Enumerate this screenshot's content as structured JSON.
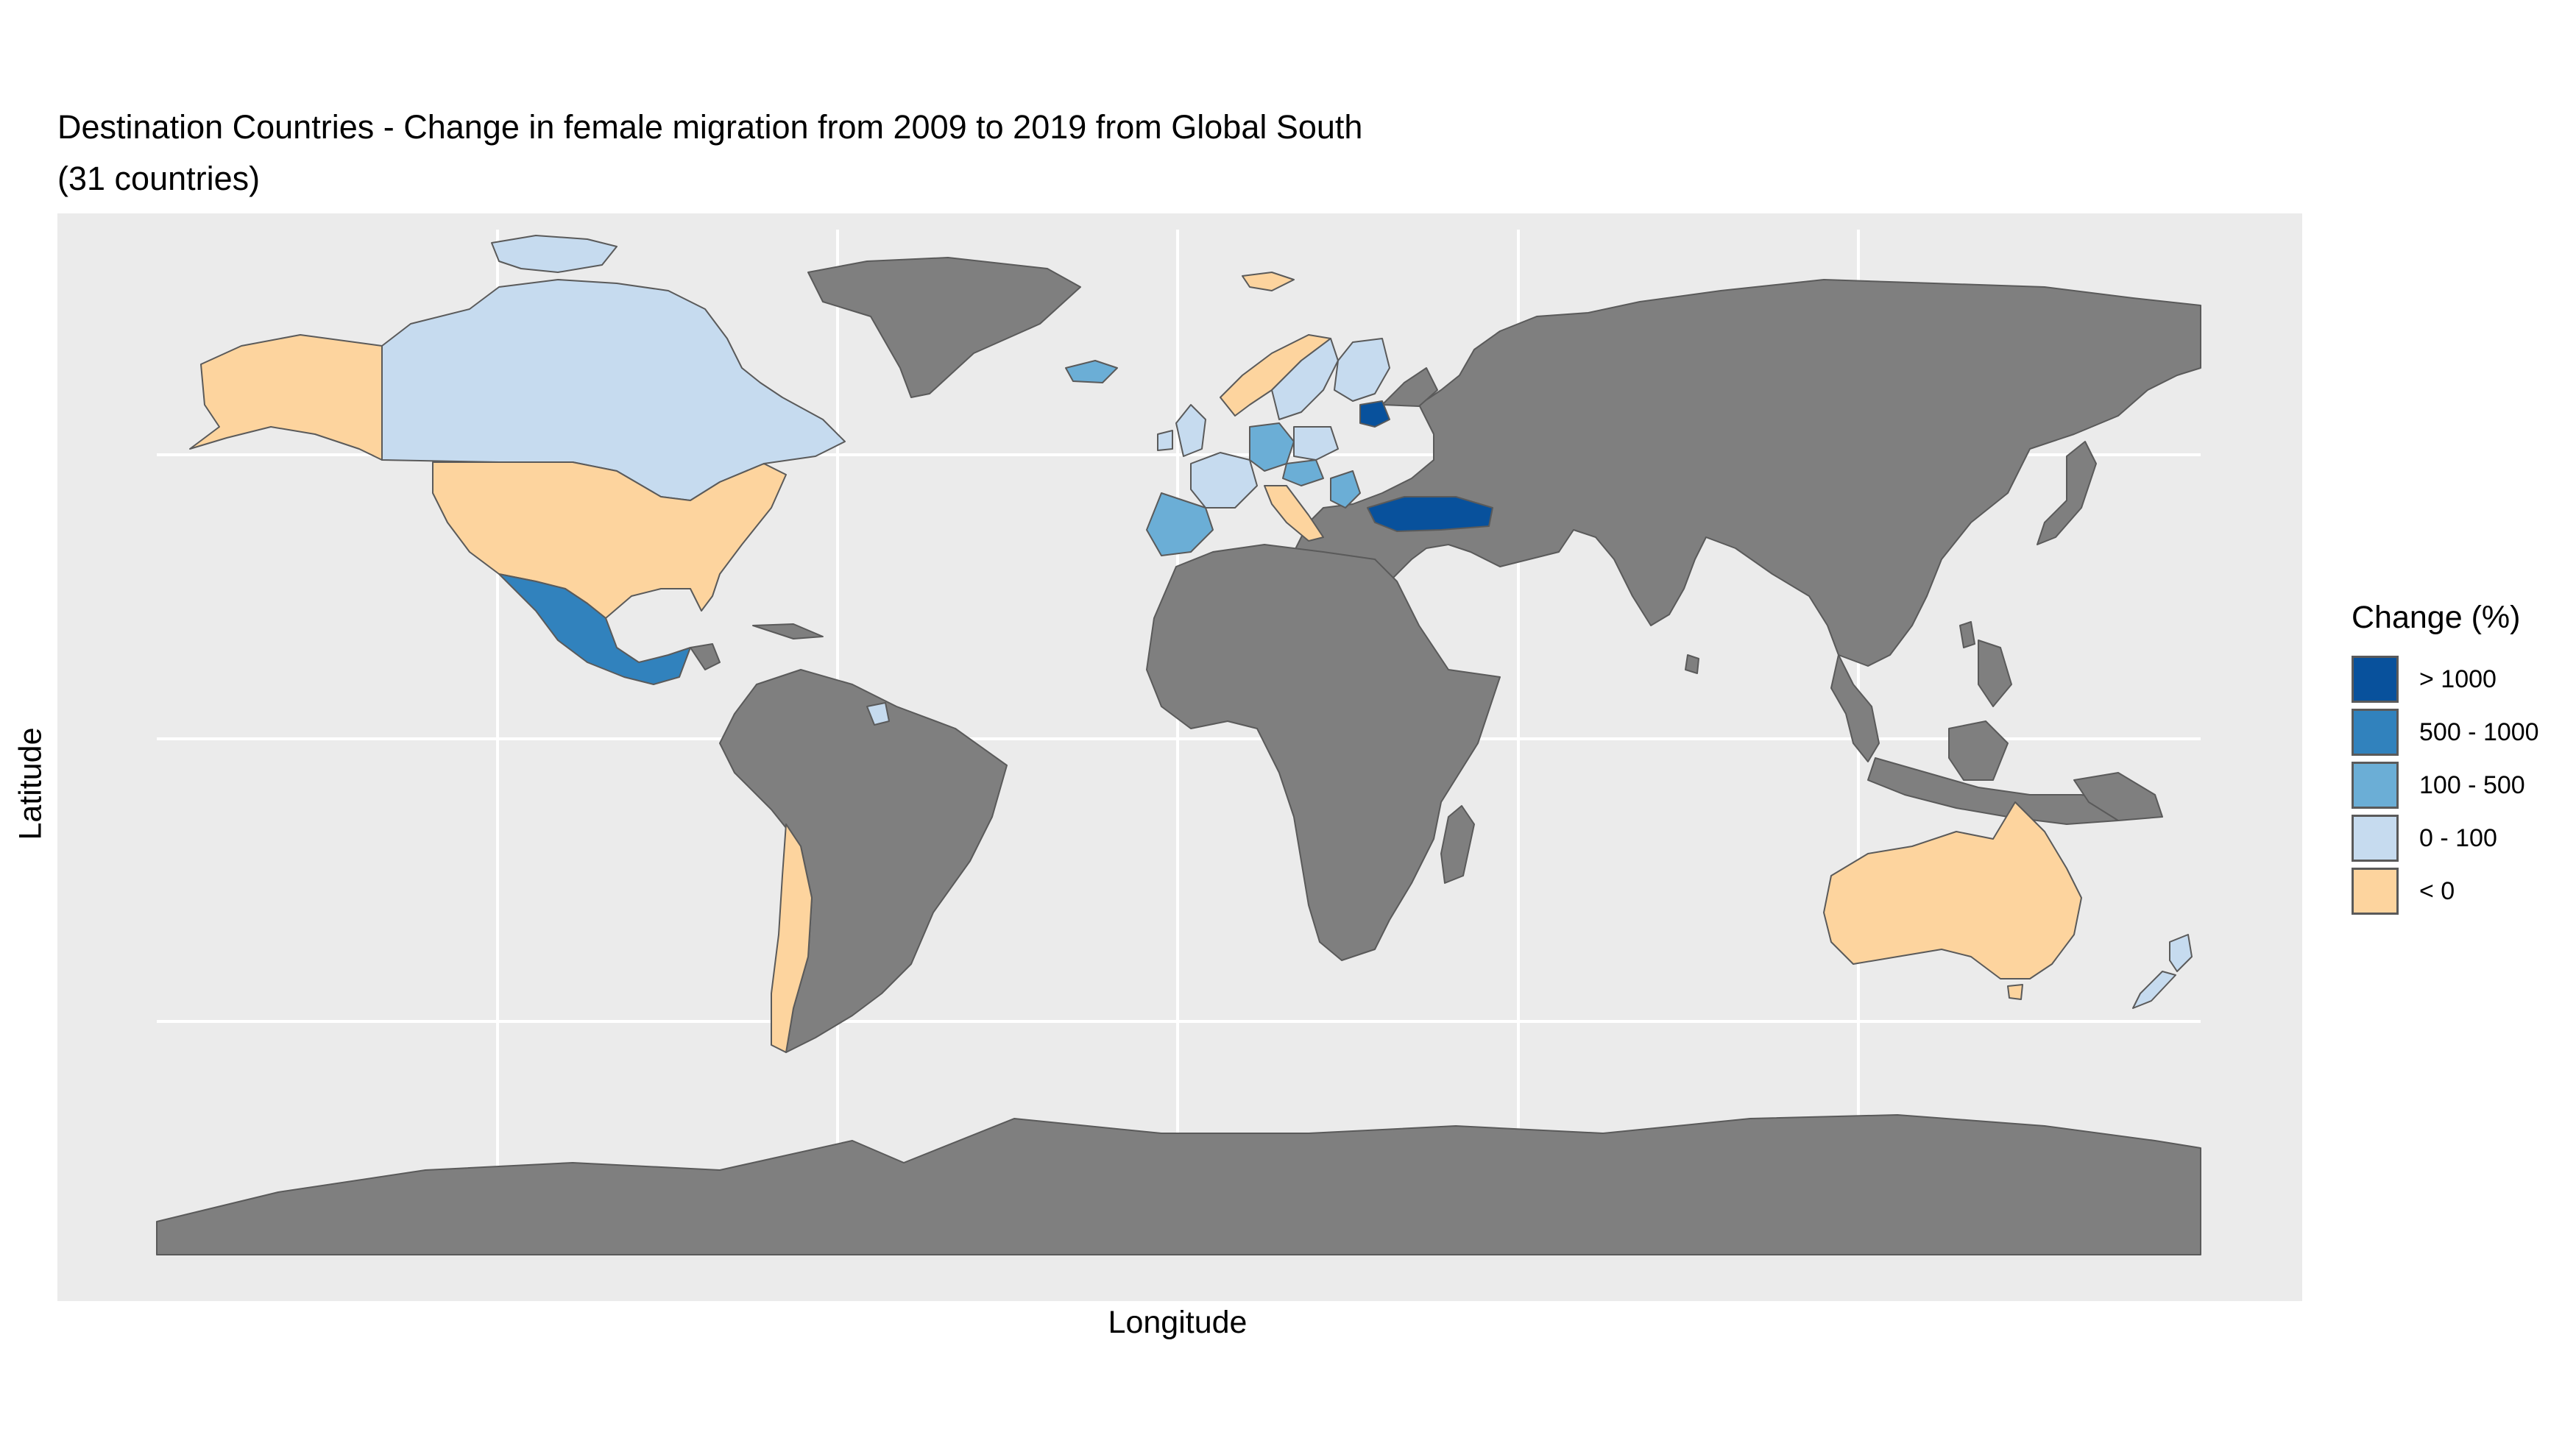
{
  "title": "Destination Countries - Change in female migration from 2009 to 2019 from Global South",
  "subtitle": "(31 countries)",
  "xlabel": "Longitude",
  "ylabel": "Latitude",
  "colors": {
    "panel": "#ebebeb",
    "grid": "#ffffff",
    "land": "#7f7f7f",
    "border": "#5a5a5a"
  },
  "legend": {
    "title": "Change (%)",
    "items": [
      {
        "label": "> 1000",
        "color": "#08519c"
      },
      {
        "label": "500 - 1000",
        "color": "#3182bd"
      },
      {
        "label": "100 - 500",
        "color": "#6baed6"
      },
      {
        "label": "0 - 100",
        "color": "#c6dbef"
      },
      {
        "label": "< 0",
        "color": "#fdd49e"
      }
    ]
  }
}
